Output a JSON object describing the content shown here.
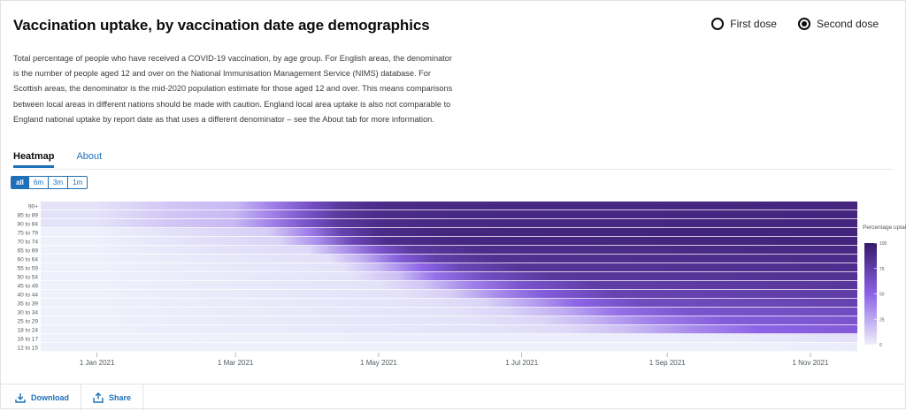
{
  "header": {
    "title": "Vaccination uptake, by vaccination date age demographics",
    "dose_options": [
      {
        "label": "First dose",
        "selected": false
      },
      {
        "label": "Second dose",
        "selected": true
      }
    ]
  },
  "description": "Total percentage of people who have received a COVID-19 vaccination, by age group. For English areas, the denominator is the number of people aged 12 and over on the National Immunisation Management Service (NIMS) database. For Scottish areas, the denominator is the mid-2020 population estimate for those aged 12 and over. This means comparisons between local areas in different nations should be made with caution. England local area uptake is also not comparable to England national uptake by report date as that uses a different denominator – see the About tab for more information.",
  "tabs": [
    {
      "label": "Heatmap",
      "active": true
    },
    {
      "label": "About",
      "active": false
    }
  ],
  "ranges": [
    {
      "label": "all",
      "active": true
    },
    {
      "label": "6m",
      "active": false
    },
    {
      "label": "3m",
      "active": false
    },
    {
      "label": "1m",
      "active": false
    }
  ],
  "footer": {
    "download_label": "Download",
    "share_label": "Share"
  },
  "colors": {
    "accent": "#1d70b8",
    "scale_low": "#eef0fb",
    "scale_mid": "#8c63e6",
    "scale_high": "#361a6b"
  },
  "chart_data": {
    "type": "heatmap",
    "title": "",
    "xlabel": "",
    "ylabel": "",
    "x_ticks": [
      "1 Jan 2021",
      "1 Mar 2021",
      "1 May 2021",
      "1 Jul 2021",
      "1 Sep 2021",
      "1 Nov 2021"
    ],
    "x_range": [
      "2020-12-08",
      "2021-11-21"
    ],
    "categories": [
      "90+",
      "85 to 89",
      "80 to 84",
      "75 to 79",
      "70 to 74",
      "65 to 69",
      "60 to 64",
      "55 to 59",
      "50 to 54",
      "45 to 49",
      "40 to 44",
      "35 to 39",
      "30 to 34",
      "25 to 29",
      "18 to 24",
      "16 to 17",
      "12 to 15"
    ],
    "series_rows": [
      {
        "name": "90+",
        "dates": [
          "2021-01-01",
          "2021-02-01",
          "2021-03-01",
          "2021-03-15",
          "2021-04-01",
          "2021-04-15",
          "2021-05-01",
          "2021-06-01",
          "2021-11-21"
        ],
        "values": [
          5,
          15,
          20,
          38,
          62,
          80,
          88,
          90,
          92
        ]
      },
      {
        "name": "85 to 89",
        "dates": [
          "2021-01-01",
          "2021-02-01",
          "2021-03-01",
          "2021-03-15",
          "2021-04-01",
          "2021-04-15",
          "2021-05-01",
          "2021-06-01",
          "2021-11-21"
        ],
        "values": [
          5,
          15,
          20,
          38,
          62,
          80,
          88,
          90,
          92
        ]
      },
      {
        "name": "80 to 84",
        "dates": [
          "2021-01-01",
          "2021-02-01",
          "2021-03-01",
          "2021-03-15",
          "2021-04-01",
          "2021-04-15",
          "2021-05-01",
          "2021-06-01",
          "2021-11-21"
        ],
        "values": [
          5,
          15,
          20,
          38,
          62,
          80,
          88,
          90,
          92
        ]
      },
      {
        "name": "75 to 79",
        "dates": [
          "2021-01-01",
          "2021-03-15",
          "2021-04-01",
          "2021-04-15",
          "2021-05-01",
          "2021-06-01",
          "2021-11-21"
        ],
        "values": [
          0,
          12,
          40,
          72,
          88,
          92,
          94
        ]
      },
      {
        "name": "70 to 74",
        "dates": [
          "2021-01-01",
          "2021-03-20",
          "2021-04-05",
          "2021-04-20",
          "2021-05-05",
          "2021-06-01",
          "2021-11-21"
        ],
        "values": [
          0,
          10,
          35,
          70,
          87,
          91,
          93
        ]
      },
      {
        "name": "65 to 69",
        "dates": [
          "2021-01-01",
          "2021-04-01",
          "2021-04-15",
          "2021-05-01",
          "2021-05-15",
          "2021-06-15",
          "2021-11-21"
        ],
        "values": [
          0,
          8,
          30,
          60,
          78,
          87,
          90
        ]
      },
      {
        "name": "60 to 64",
        "dates": [
          "2021-01-01",
          "2021-04-10",
          "2021-04-25",
          "2021-05-10",
          "2021-05-25",
          "2021-06-20",
          "2021-11-21"
        ],
        "values": [
          0,
          6,
          25,
          55,
          75,
          85,
          88
        ]
      },
      {
        "name": "55 to 59",
        "dates": [
          "2021-01-01",
          "2021-04-15",
          "2021-05-01",
          "2021-05-20",
          "2021-06-05",
          "2021-07-01",
          "2021-11-21"
        ],
        "values": [
          0,
          5,
          20,
          50,
          70,
          82,
          86
        ]
      },
      {
        "name": "50 to 54",
        "dates": [
          "2021-01-01",
          "2021-04-20",
          "2021-05-10",
          "2021-05-25",
          "2021-06-15",
          "2021-07-15",
          "2021-11-21"
        ],
        "values": [
          0,
          5,
          18,
          45,
          65,
          80,
          84
        ]
      },
      {
        "name": "45 to 49",
        "dates": [
          "2021-01-01",
          "2021-05-01",
          "2021-05-20",
          "2021-06-10",
          "2021-06-30",
          "2021-08-01",
          "2021-11-21"
        ],
        "values": [
          0,
          5,
          15,
          40,
          60,
          76,
          80
        ]
      },
      {
        "name": "40 to 44",
        "dates": [
          "2021-01-01",
          "2021-05-10",
          "2021-06-01",
          "2021-06-20",
          "2021-07-10",
          "2021-08-10",
          "2021-11-21"
        ],
        "values": [
          0,
          5,
          12,
          35,
          55,
          72,
          76
        ]
      },
      {
        "name": "35 to 39",
        "dates": [
          "2021-01-01",
          "2021-05-20",
          "2021-06-15",
          "2021-07-05",
          "2021-07-25",
          "2021-08-20",
          "2021-11-21"
        ],
        "values": [
          0,
          5,
          10,
          28,
          50,
          66,
          72
        ]
      },
      {
        "name": "30 to 34",
        "dates": [
          "2021-01-01",
          "2021-06-01",
          "2021-06-25",
          "2021-07-20",
          "2021-08-10",
          "2021-09-10",
          "2021-11-21"
        ],
        "values": [
          0,
          5,
          10,
          25,
          45,
          60,
          66
        ]
      },
      {
        "name": "25 to 29",
        "dates": [
          "2021-01-01",
          "2021-06-10",
          "2021-07-10",
          "2021-08-01",
          "2021-08-25",
          "2021-09-25",
          "2021-11-21"
        ],
        "values": [
          0,
          5,
          10,
          22,
          40,
          55,
          60
        ]
      },
      {
        "name": "18 to 24",
        "dates": [
          "2021-01-01",
          "2021-06-20",
          "2021-07-20",
          "2021-08-15",
          "2021-09-10",
          "2021-10-10",
          "2021-11-21"
        ],
        "values": [
          0,
          5,
          8,
          18,
          35,
          50,
          56
        ]
      },
      {
        "name": "16 to 17",
        "dates": [
          "2021-01-01",
          "2021-09-01",
          "2021-10-15",
          "2021-11-21"
        ],
        "values": [
          0,
          1,
          3,
          6
        ]
      },
      {
        "name": "12 to 15",
        "dates": [
          "2021-01-01",
          "2021-10-01",
          "2021-11-21"
        ],
        "values": [
          0,
          0,
          1
        ]
      }
    ],
    "color_scale": {
      "title": "Percentage uptake",
      "ticks": [
        0,
        25,
        50,
        75,
        100
      ],
      "range": [
        0,
        100
      ]
    },
    "grid": false
  }
}
